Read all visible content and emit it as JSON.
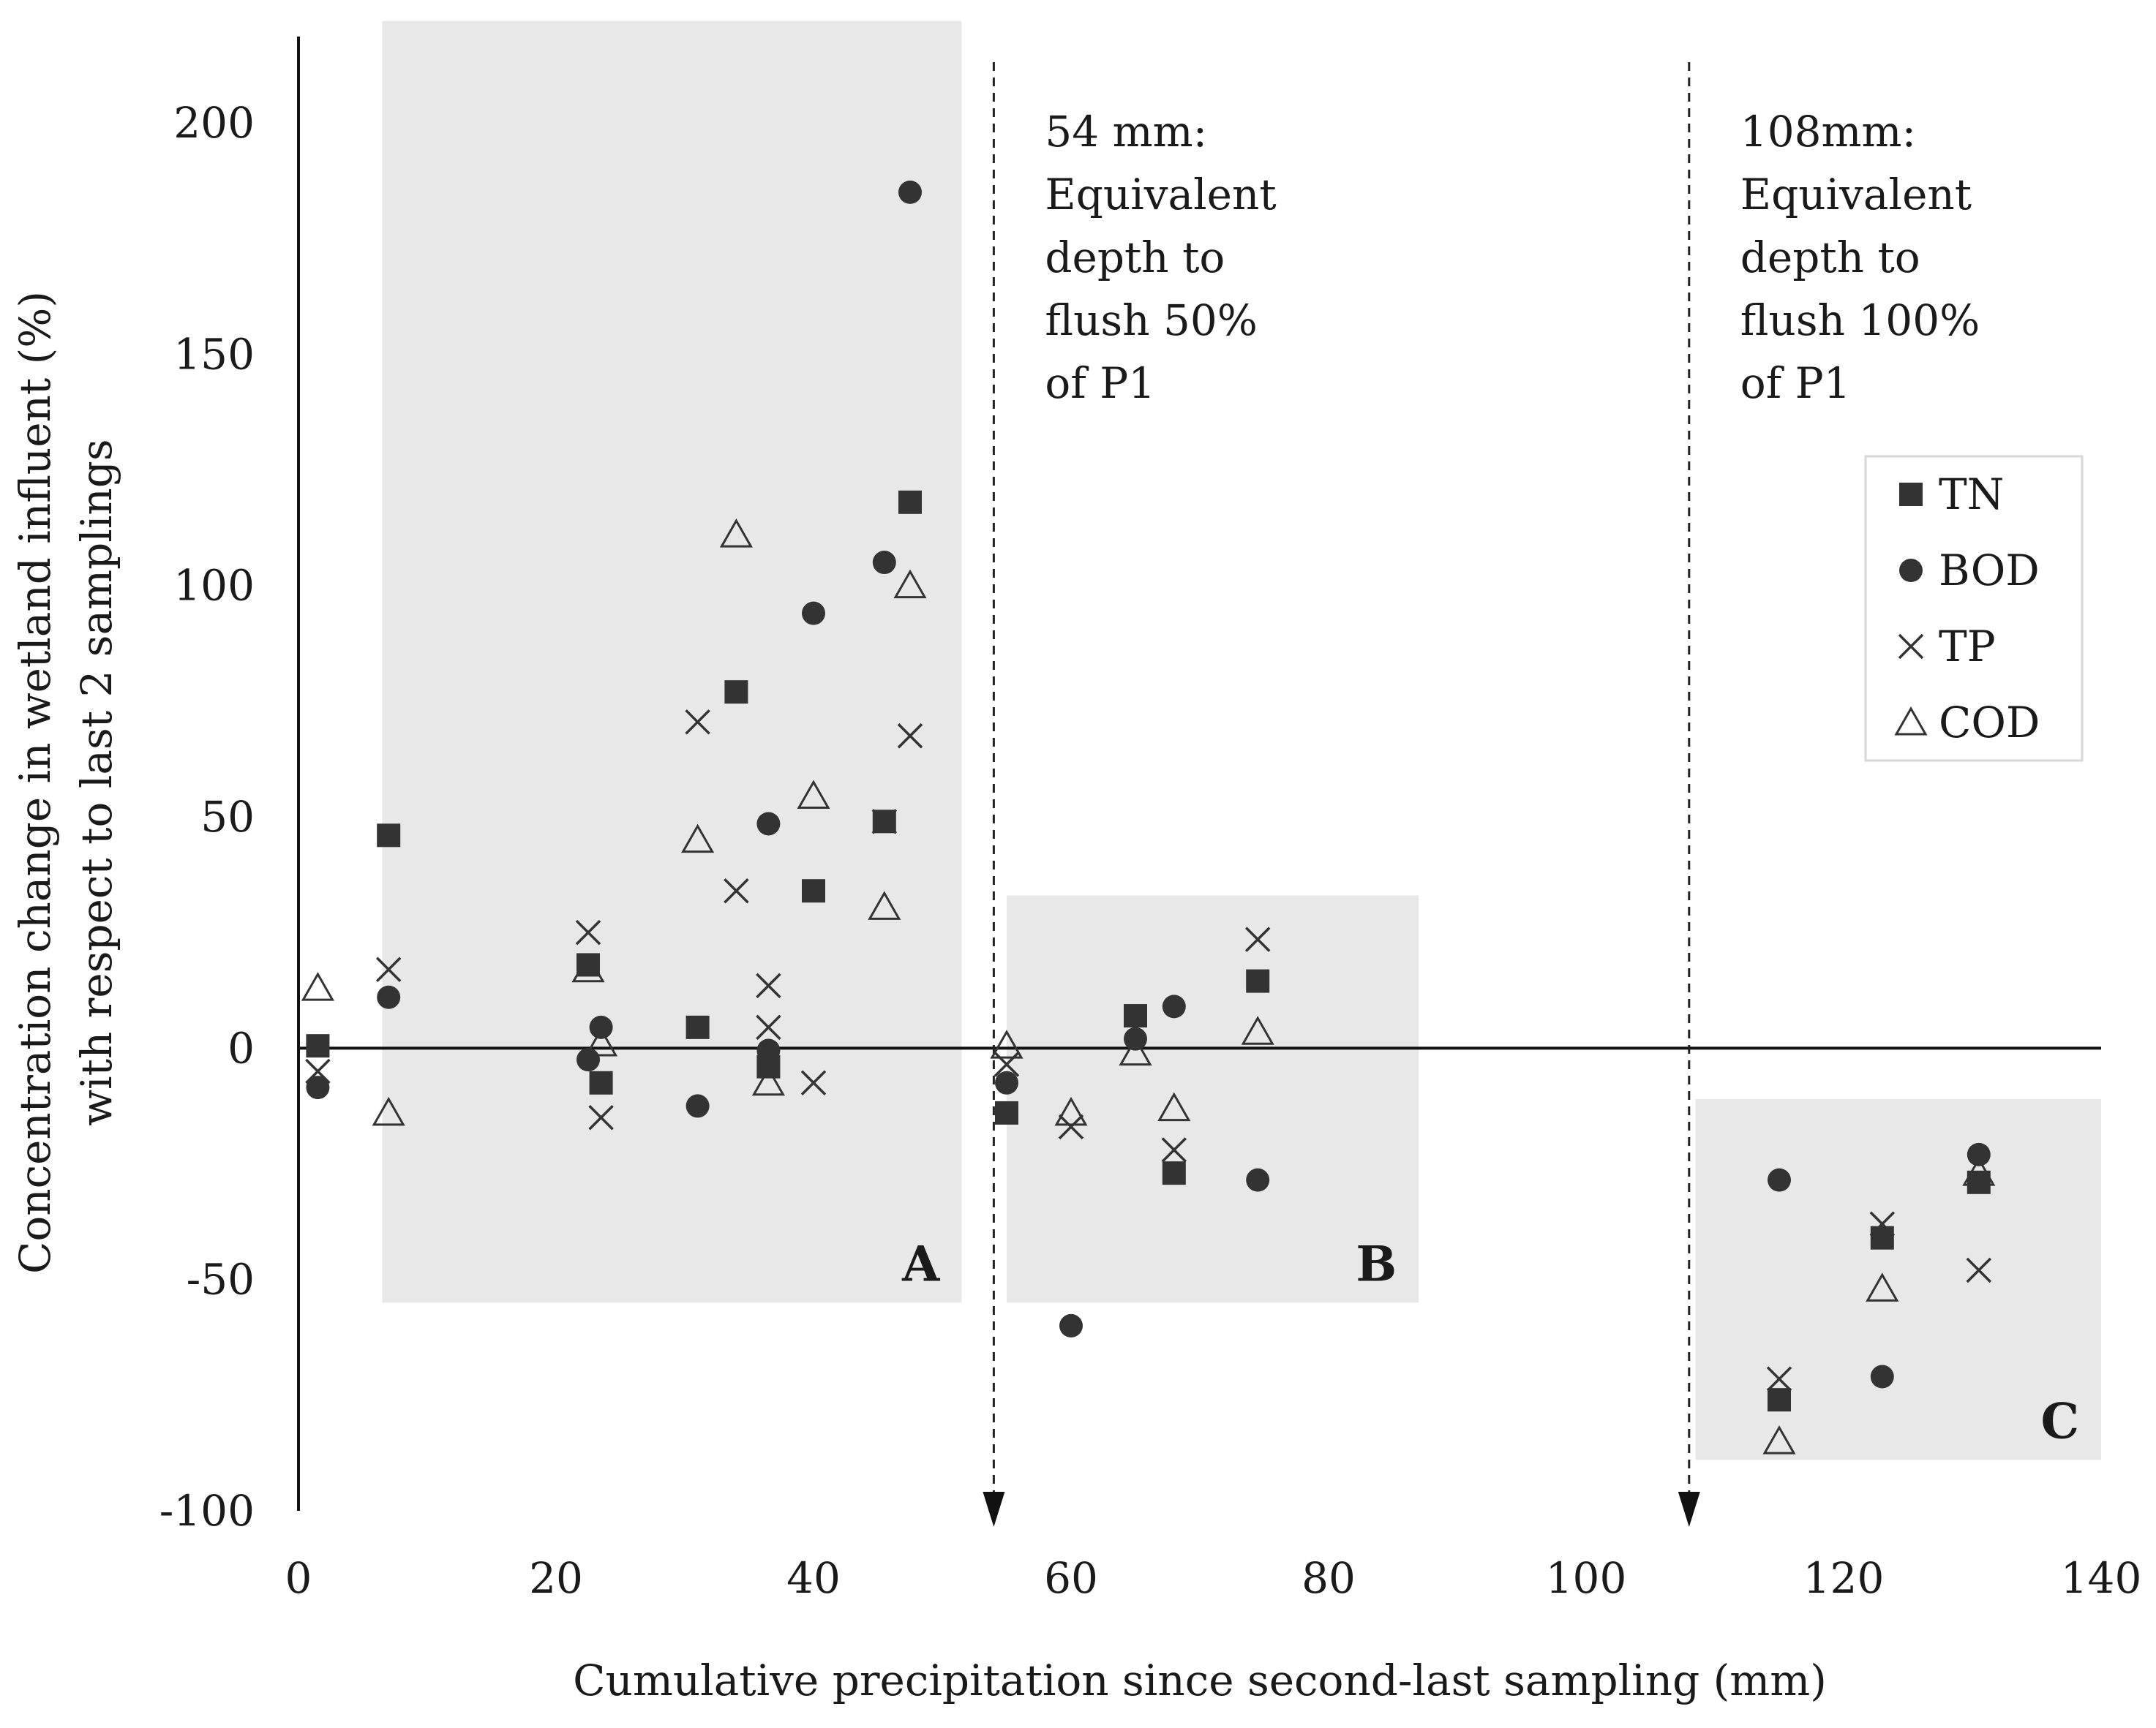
{
  "chart_data": {
    "type": "scatter",
    "xlabel": "Cumulative precipitation since second-last sampling (mm)",
    "ylabel_line1": "Concentration change in wetland influent (%)",
    "ylabel_line2": "with respect to last 2 samplings",
    "xlim": [
      0,
      140
    ],
    "ylim": [
      -100,
      220
    ],
    "x_ticks": [
      0,
      20,
      40,
      60,
      80,
      100,
      120,
      140
    ],
    "y_ticks": [
      200,
      150,
      100,
      50,
      0,
      -50,
      -100
    ],
    "shaded_zones": [
      {
        "label": "A",
        "x": [
          6.5,
          51.5
        ],
        "y": [
          -55,
          222
        ]
      },
      {
        "label": "B",
        "x": [
          55,
          87
        ],
        "y": [
          -55,
          33
        ]
      },
      {
        "label": "C",
        "x": [
          108.5,
          140
        ],
        "y": [
          -89,
          -11
        ]
      }
    ],
    "vlines": [
      {
        "x": 54,
        "lines": [
          "54 mm:",
          "Equivalent",
          "depth to",
          "flush 50%",
          "of P1"
        ]
      },
      {
        "x": 108,
        "lines": [
          "108mm:",
          "Equivalent",
          "depth to",
          "flush 100%",
          "of P1"
        ]
      }
    ],
    "series": [
      {
        "name": "TN",
        "marker": "square",
        "points": [
          [
            1.5,
            0.5
          ],
          [
            7,
            46
          ],
          [
            22.5,
            18
          ],
          [
            23.5,
            -7.5
          ],
          [
            31,
            4.5
          ],
          [
            34,
            77
          ],
          [
            36.5,
            -4
          ],
          [
            40,
            34
          ],
          [
            45.5,
            49
          ],
          [
            47.5,
            118
          ],
          [
            55,
            -14
          ],
          [
            65,
            7
          ],
          [
            68,
            -27
          ],
          [
            74.5,
            14.5
          ],
          [
            115,
            -76
          ],
          [
            123,
            -41
          ],
          [
            130.5,
            -29
          ]
        ]
      },
      {
        "name": "BOD",
        "marker": "circle",
        "points": [
          [
            1.5,
            -8.5
          ],
          [
            7,
            11
          ],
          [
            22.5,
            -2.5
          ],
          [
            23.5,
            4.5
          ],
          [
            31,
            -12.5
          ],
          [
            36.5,
            48.5
          ],
          [
            36.5,
            -0.5
          ],
          [
            40,
            94
          ],
          [
            45.5,
            105
          ],
          [
            47.5,
            185
          ],
          [
            55,
            -7.5
          ],
          [
            60,
            -60
          ],
          [
            65,
            2
          ],
          [
            68,
            9
          ],
          [
            74.5,
            -28.5
          ],
          [
            115,
            -28.5
          ],
          [
            123,
            -71
          ],
          [
            130.5,
            -23
          ]
        ]
      },
      {
        "name": "TP",
        "marker": "x",
        "points": [
          [
            1.5,
            -5
          ],
          [
            7,
            17
          ],
          [
            22.5,
            25
          ],
          [
            23.5,
            -15
          ],
          [
            31,
            70.5
          ],
          [
            34,
            34
          ],
          [
            36.5,
            13.5
          ],
          [
            36.5,
            4.5
          ],
          [
            40,
            -7.5
          ],
          [
            45.5,
            49
          ],
          [
            47.5,
            67.5
          ],
          [
            55,
            -3.5
          ],
          [
            60,
            -17
          ],
          [
            68,
            -22
          ],
          [
            74.5,
            23.5
          ],
          [
            115,
            -71.5
          ],
          [
            123,
            -38
          ],
          [
            130.5,
            -48
          ]
        ]
      },
      {
        "name": "COD",
        "marker": "triangle",
        "points": [
          [
            1.5,
            13
          ],
          [
            7,
            -14
          ],
          [
            22.5,
            17
          ],
          [
            23.5,
            1
          ],
          [
            31,
            45
          ],
          [
            34,
            111
          ],
          [
            36.5,
            -7.5
          ],
          [
            40,
            54.5
          ],
          [
            45.5,
            30.5
          ],
          [
            47.5,
            100
          ],
          [
            55,
            0.5
          ],
          [
            60,
            -14
          ],
          [
            65,
            -1
          ],
          [
            68,
            -13
          ],
          [
            74.5,
            3.5
          ],
          [
            115,
            -85
          ],
          [
            123,
            -52
          ],
          [
            130.5,
            -27
          ]
        ]
      }
    ],
    "legend": {
      "position": "right",
      "entries": [
        "TN",
        "BOD",
        "TP",
        "COD"
      ]
    }
  }
}
